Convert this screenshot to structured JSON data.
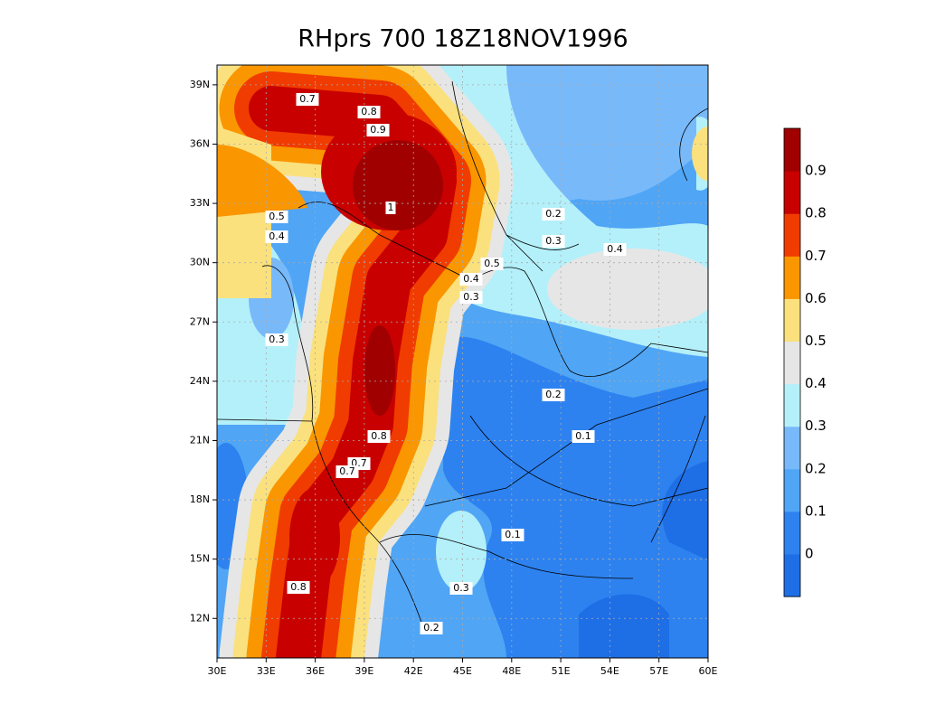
{
  "map": {
    "title": "RHprs 700 18Z18NOV1996",
    "xlim": [
      30,
      60
    ],
    "ylim": [
      10,
      40
    ],
    "xticks": [
      {
        "value": 30,
        "label": "30E"
      },
      {
        "value": 33,
        "label": "33E"
      },
      {
        "value": 36,
        "label": "36E"
      },
      {
        "value": 39,
        "label": "39E"
      },
      {
        "value": 42,
        "label": "42E"
      },
      {
        "value": 45,
        "label": "45E"
      },
      {
        "value": 48,
        "label": "48E"
      },
      {
        "value": 51,
        "label": "51E"
      },
      {
        "value": 54,
        "label": "54E"
      },
      {
        "value": 57,
        "label": "57E"
      },
      {
        "value": 60,
        "label": "60E"
      }
    ],
    "yticks": [
      {
        "value": 12,
        "label": "12N"
      },
      {
        "value": 15,
        "label": "15N"
      },
      {
        "value": 18,
        "label": "18N"
      },
      {
        "value": 21,
        "label": "21N"
      },
      {
        "value": 24,
        "label": "24N"
      },
      {
        "value": 27,
        "label": "27N"
      },
      {
        "value": 30,
        "label": "30N"
      },
      {
        "value": 33,
        "label": "33N"
      },
      {
        "value": 36,
        "label": "36N"
      },
      {
        "value": 39,
        "label": "39N"
      }
    ],
    "grid": true,
    "colorbar": {
      "levels": [
        0,
        0.1,
        0.2,
        0.3,
        0.4,
        0.5,
        0.6,
        0.7,
        0.8,
        0.9
      ],
      "colors": [
        "#1e6ee6",
        "#2d82f0",
        "#50a5f5",
        "#78b9fa",
        "#b4f0fa",
        "#e6e6e6",
        "#fae17d",
        "#fa9600",
        "#f03c00",
        "#c80000",
        "#a00000"
      ]
    },
    "contour_labels": [
      "0.7",
      "0.8",
      "0.9",
      "1",
      "0.5",
      "0.4",
      "0.2",
      "0.3",
      "0.4",
      "0.5",
      "0.4",
      "0.3",
      "0.3",
      "0.2",
      "0.1",
      "0.8",
      "0.7",
      "0.7",
      "0.1",
      "0.8",
      "0.3",
      "0.2"
    ]
  }
}
